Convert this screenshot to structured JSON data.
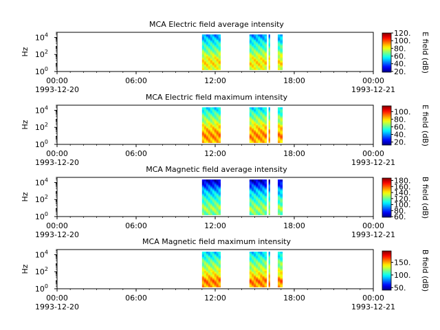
{
  "chart_data": [
    {
      "type": "heatmap",
      "title": "MCA  Electric field average intensity",
      "ylabel": "Hz",
      "ytick_labels": [
        "10",
        "10",
        "10"
      ],
      "ytick_exponents": [
        "0",
        "2",
        "4"
      ],
      "ylim": [
        1,
        40000
      ],
      "yscale": "log",
      "xlim": [
        "1993-12-20 00:00",
        "1993-12-21 00:00"
      ],
      "xtick_labels": [
        "00:00",
        "06:00",
        "12:00",
        "18:00",
        "00:00"
      ],
      "x_date_labels": [
        "1993-12-20",
        "1993-12-21"
      ],
      "colorbar": {
        "label": "E field (dB)",
        "range": [
          18,
          120
        ],
        "ticks": [
          "20.",
          "40.",
          "60.",
          "80.",
          "100.",
          "120."
        ]
      },
      "data_intervals_hours": [
        [
          11.0,
          12.4
        ],
        [
          14.6,
          15.9
        ],
        [
          16.05,
          16.15
        ],
        [
          16.75,
          17.1
        ]
      ],
      "value_profile_low_to_high_freq": [
        78,
        84,
        80,
        70,
        62,
        55,
        45
      ]
    },
    {
      "type": "heatmap",
      "title": "MCA  Electric field maximum intensity",
      "ylabel": "Hz",
      "ytick_labels": [
        "10",
        "10",
        "10"
      ],
      "ytick_exponents": [
        "0",
        "2",
        "4"
      ],
      "ylim": [
        1,
        40000
      ],
      "yscale": "log",
      "xlim": [
        "1993-12-20 00:00",
        "1993-12-21 00:00"
      ],
      "xtick_labels": [
        "00:00",
        "06:00",
        "12:00",
        "18:00",
        "00:00"
      ],
      "x_date_labels": [
        "1993-12-20",
        "1993-12-21"
      ],
      "colorbar": {
        "label": "E field (dB)",
        "range": [
          12,
          115
        ],
        "ticks": [
          "20.",
          "40.",
          "60.",
          "80.",
          "100."
        ]
      },
      "data_intervals_hours": [
        [
          11.0,
          12.4
        ],
        [
          14.6,
          15.9
        ],
        [
          16.05,
          16.15
        ],
        [
          16.75,
          17.1
        ]
      ],
      "value_profile_low_to_high_freq": [
        82,
        88,
        84,
        75,
        66,
        58,
        48
      ]
    },
    {
      "type": "heatmap",
      "title": "MCA  Magnetic field average intensity",
      "ylabel": "Hz",
      "ytick_labels": [
        "10",
        "10",
        "10"
      ],
      "ytick_exponents": [
        "0",
        "2",
        "4"
      ],
      "ylim": [
        1,
        40000
      ],
      "yscale": "log",
      "xlim": [
        "1993-12-20 00:00",
        "1993-12-21 00:00"
      ],
      "xtick_labels": [
        "00:00",
        "06:00",
        "12:00",
        "18:00",
        "00:00"
      ],
      "x_date_labels": [
        "1993-12-20",
        "1993-12-21"
      ],
      "colorbar": {
        "label": "B field (dB)",
        "range": [
          58,
          188
        ],
        "ticks": [
          "60.",
          "80.",
          "100.",
          "120.",
          "140.",
          "160.",
          "180."
        ]
      },
      "data_intervals_hours": [
        [
          11.0,
          12.4
        ],
        [
          14.6,
          15.9
        ],
        [
          16.05,
          16.15
        ],
        [
          16.75,
          17.1
        ]
      ],
      "value_profile_low_to_high_freq": [
        120,
        128,
        118,
        110,
        100,
        84,
        66
      ]
    },
    {
      "type": "heatmap",
      "title": "MCA  Magnetic field maximum intensity",
      "ylabel": "Hz",
      "ytick_labels": [
        "10",
        "10",
        "10"
      ],
      "ytick_exponents": [
        "0",
        "2",
        "4"
      ],
      "ylim": [
        1,
        40000
      ],
      "yscale": "log",
      "xlim": [
        "1993-12-20 00:00",
        "1993-12-21 00:00"
      ],
      "xtick_labels": [
        "00:00",
        "06:00",
        "12:00",
        "18:00",
        "00:00"
      ],
      "x_date_labels": [
        "1993-12-20",
        "1993-12-21"
      ],
      "colorbar": {
        "label": "B field (dB)",
        "range": [
          40,
          195
        ],
        "ticks": [
          "50.",
          "100.",
          "150."
        ]
      },
      "data_intervals_hours": [
        [
          11.0,
          12.4
        ],
        [
          14.6,
          15.9
        ],
        [
          16.05,
          16.15
        ],
        [
          16.75,
          17.1
        ]
      ],
      "value_profile_low_to_high_freq": [
        150,
        158,
        140,
        128,
        118,
        105,
        92
      ]
    }
  ]
}
